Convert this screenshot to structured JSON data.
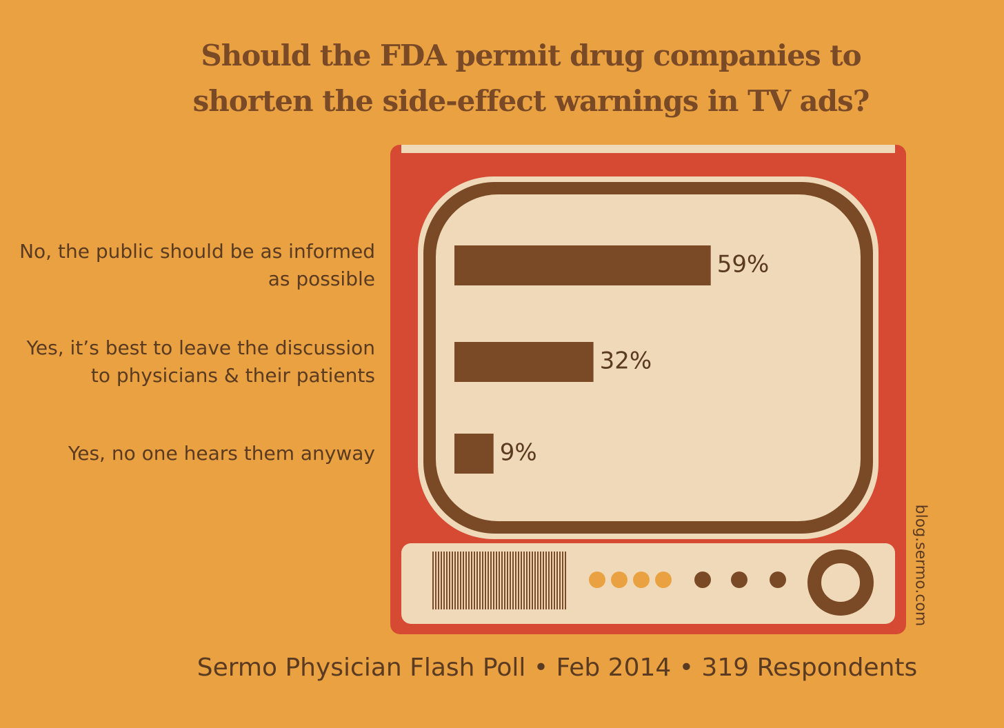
{
  "chart_data": {
    "type": "bar",
    "orientation": "horizontal",
    "title": "Should the FDA permit drug companies to shorten the side-effect warnings in TV ads?",
    "categories": [
      "No, the public should be as informed as possible",
      "Yes, it’s best to leave the discussion to physicians & their patients",
      "Yes, no one hears them anyway"
    ],
    "values": [
      59,
      32,
      9
    ],
    "value_labels": [
      "59%",
      "32%",
      "9%"
    ],
    "color": "#7a4a27",
    "source": "Sermo Physician Flash Poll • Feb 2014 • 319 Respondents",
    "credit": "blog.sermo.com"
  }
}
